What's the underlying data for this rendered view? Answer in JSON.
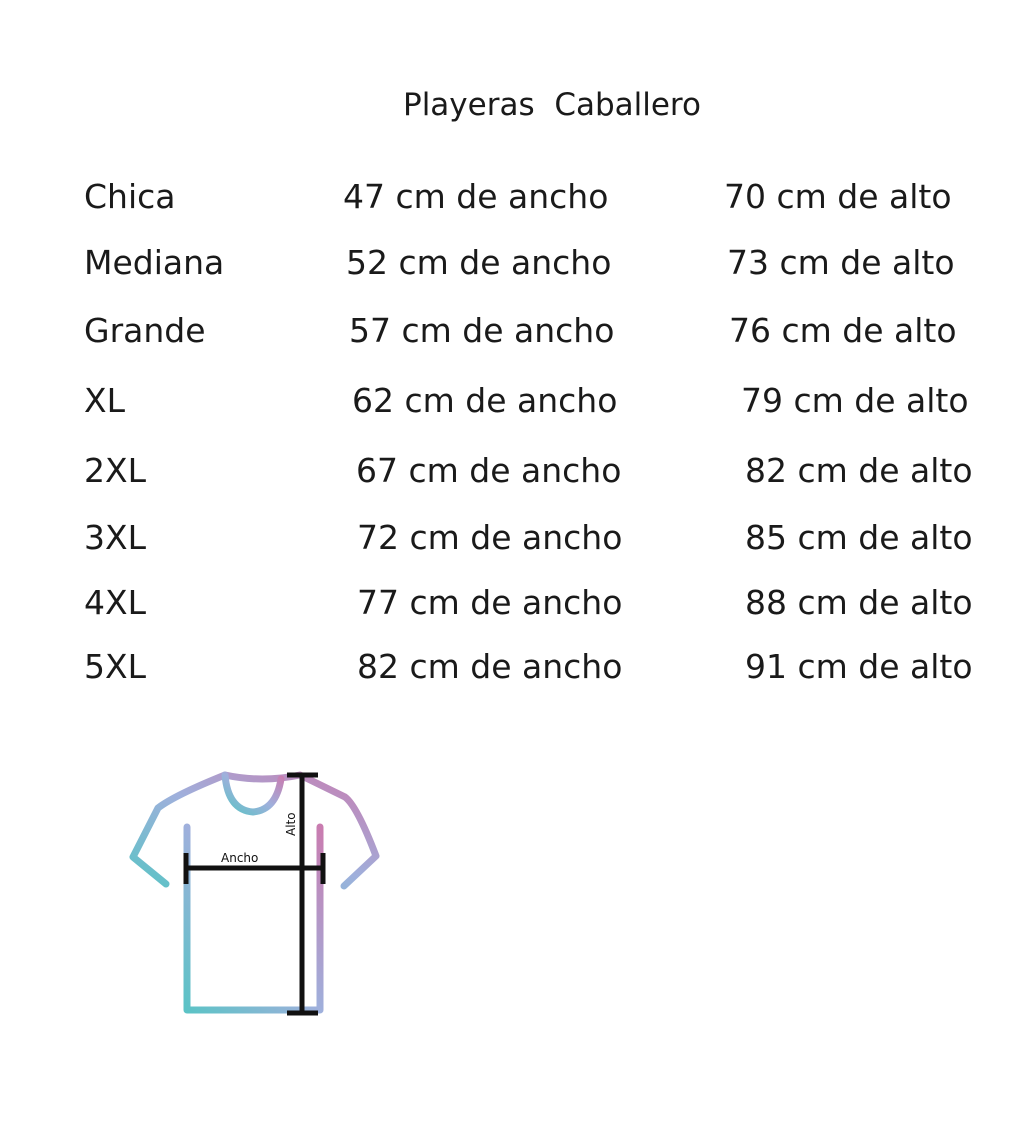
{
  "title": "Playeras  Caballero",
  "rows": [
    {
      "size": "Chica",
      "width": "47 cm de ancho",
      "height": "70 cm de alto"
    },
    {
      "size": "Mediana",
      "width": "52 cm de ancho",
      "height": "73 cm de alto"
    },
    {
      "size": "Grande",
      "width": "57 cm de ancho",
      "height": "76 cm de alto"
    },
    {
      "size": "XL",
      "width": "62 cm de ancho",
      "height": "79 cm de alto"
    },
    {
      "size": "2XL",
      "width": "67 cm de ancho",
      "height": "82 cm de alto"
    },
    {
      "size": "3XL",
      "width": "72 cm de ancho",
      "height": "85 cm de alto"
    },
    {
      "size": "4XL",
      "width": "77 cm de ancho",
      "height": "88 cm de alto"
    },
    {
      "size": "5XL",
      "width": "82 cm de ancho",
      "height": "91 cm de alto"
    }
  ],
  "diagram": {
    "width_label": "Ancho",
    "height_label": "Alto",
    "icon": "tshirt-icon",
    "gradient_colors": [
      "#5cc3c6",
      "#9fb0dc",
      "#c97cb0"
    ]
  }
}
